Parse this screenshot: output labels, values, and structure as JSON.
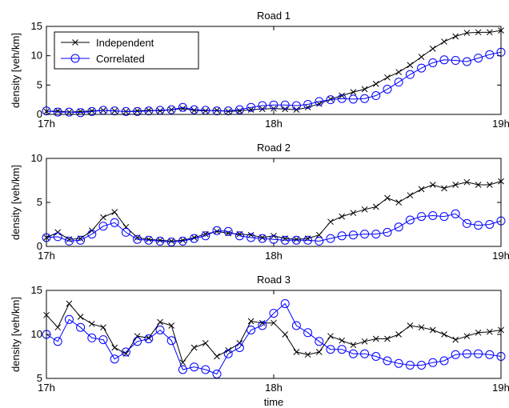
{
  "chart_data": [
    {
      "type": "line",
      "title": "Road 1",
      "ylabel": "density [veh/km]",
      "x": [
        17,
        17.05,
        17.1,
        17.15,
        17.2,
        17.25,
        17.3,
        17.35,
        17.4,
        17.45,
        17.5,
        17.55,
        17.6,
        17.65,
        17.7,
        17.75,
        17.8,
        17.85,
        17.9,
        17.95,
        18,
        18.05,
        18.1,
        18.15,
        18.2,
        18.25,
        18.3,
        18.35,
        18.4,
        18.45,
        18.5,
        18.55,
        18.6,
        18.65,
        18.7,
        18.75,
        18.8,
        18.85,
        18.9,
        18.95,
        19
      ],
      "series": [
        {
          "name": "Independent",
          "color": "#000000",
          "marker": "x",
          "values": [
            0.5,
            0.6,
            0.4,
            0.5,
            0.6,
            0.7,
            0.6,
            0.5,
            0.6,
            0.7,
            0.6,
            0.8,
            1.0,
            0.7,
            0.6,
            0.7,
            0.5,
            0.6,
            0.8,
            0.9,
            1.0,
            0.9,
            0.8,
            1.2,
            1.8,
            2.6,
            3.2,
            3.8,
            4.3,
            5.2,
            6.3,
            7.2,
            8.4,
            9.8,
            11.2,
            12.4,
            13.3,
            13.9,
            14.0,
            14.0,
            14.3
          ]
        },
        {
          "name": "Correlated",
          "color": "#0000ff",
          "marker": "o",
          "values": [
            0.6,
            0.4,
            0.4,
            0.3,
            0.5,
            0.7,
            0.6,
            0.5,
            0.5,
            0.6,
            0.7,
            0.8,
            1.2,
            0.8,
            0.7,
            0.6,
            0.6,
            0.8,
            1.2,
            1.5,
            1.6,
            1.6,
            1.5,
            1.7,
            2.2,
            2.5,
            2.7,
            2.6,
            2.7,
            3.2,
            4.3,
            5.5,
            6.8,
            7.9,
            8.8,
            9.3,
            9.2,
            9.0,
            9.6,
            10.2,
            10.6
          ]
        }
      ],
      "xlim": [
        17,
        19
      ],
      "xticks": [
        {
          "value": 17,
          "label": "17h"
        },
        {
          "value": 18,
          "label": "18h"
        },
        {
          "value": 19,
          "label": "19h"
        }
      ],
      "ylim": [
        0,
        15
      ],
      "yticks": [
        0,
        5,
        10,
        15
      ],
      "legend": "upper left"
    },
    {
      "type": "line",
      "title": "Road 2",
      "ylabel": "density [veh/km]",
      "x": [
        17,
        17.05,
        17.1,
        17.15,
        17.2,
        17.25,
        17.3,
        17.35,
        17.4,
        17.45,
        17.5,
        17.55,
        17.6,
        17.65,
        17.7,
        17.75,
        17.8,
        17.85,
        17.9,
        17.95,
        18,
        18.05,
        18.1,
        18.15,
        18.2,
        18.25,
        18.3,
        18.35,
        18.4,
        18.45,
        18.5,
        18.55,
        18.6,
        18.65,
        18.7,
        18.75,
        18.8,
        18.85,
        18.9,
        18.95,
        19
      ],
      "series": [
        {
          "color": "#000000",
          "marker": "x",
          "values": [
            1.0,
            1.6,
            0.8,
            0.9,
            1.8,
            3.3,
            3.9,
            2.2,
            1.0,
            0.8,
            0.7,
            0.6,
            0.7,
            1.0,
            1.4,
            1.7,
            1.5,
            1.4,
            1.3,
            1.0,
            1.2,
            0.9,
            0.8,
            0.9,
            1.3,
            2.8,
            3.4,
            3.8,
            4.2,
            4.5,
            5.5,
            5.0,
            5.8,
            6.5,
            7.0,
            6.6,
            7.0,
            7.3,
            7.0,
            7.0,
            7.4
          ]
        },
        {
          "color": "#0000ff",
          "marker": "o",
          "values": [
            1.0,
            1.1,
            0.6,
            0.7,
            1.4,
            2.3,
            2.7,
            1.6,
            0.8,
            0.7,
            0.6,
            0.5,
            0.6,
            0.9,
            1.2,
            1.8,
            1.7,
            1.2,
            1.0,
            0.9,
            0.8,
            0.7,
            0.7,
            0.7,
            0.6,
            0.9,
            1.2,
            1.3,
            1.4,
            1.4,
            1.6,
            2.2,
            3.0,
            3.4,
            3.5,
            3.4,
            3.7,
            2.6,
            2.4,
            2.5,
            2.9
          ]
        }
      ],
      "xlim": [
        17,
        19
      ],
      "xticks": [
        {
          "value": 17,
          "label": "17h"
        },
        {
          "value": 18,
          "label": "18h"
        },
        {
          "value": 19,
          "label": "19h"
        }
      ],
      "ylim": [
        0,
        10
      ],
      "yticks": [
        0,
        5,
        10
      ]
    },
    {
      "type": "line",
      "title": "Road 3",
      "ylabel": "density [veh/km]",
      "xlabel": "time",
      "x": [
        17,
        17.05,
        17.1,
        17.15,
        17.2,
        17.25,
        17.3,
        17.35,
        17.4,
        17.45,
        17.5,
        17.55,
        17.6,
        17.65,
        17.7,
        17.75,
        17.8,
        17.85,
        17.9,
        17.95,
        18,
        18.05,
        18.1,
        18.15,
        18.2,
        18.25,
        18.3,
        18.35,
        18.4,
        18.45,
        18.5,
        18.55,
        18.6,
        18.65,
        18.7,
        18.75,
        18.8,
        18.85,
        18.9,
        18.95,
        19
      ],
      "series": [
        {
          "color": "#000000",
          "marker": "x",
          "values": [
            12.2,
            10.8,
            13.5,
            12.0,
            11.2,
            10.8,
            8.5,
            7.8,
            9.8,
            9.6,
            11.4,
            11.0,
            6.8,
            8.5,
            9.0,
            7.5,
            8.2,
            9.0,
            11.5,
            11.3,
            11.3,
            10.0,
            8.0,
            7.7,
            8.0,
            9.8,
            9.3,
            8.8,
            9.2,
            9.5,
            9.5,
            10.0,
            11.0,
            10.8,
            10.5,
            10.0,
            9.4,
            9.8,
            10.2,
            10.3,
            10.5
          ]
        },
        {
          "color": "#0000ff",
          "marker": "o",
          "values": [
            10.0,
            9.2,
            11.7,
            10.8,
            9.6,
            9.4,
            7.2,
            8.0,
            9.2,
            9.5,
            10.5,
            9.3,
            6.0,
            6.3,
            6.0,
            5.5,
            7.8,
            8.5,
            10.5,
            11.0,
            12.4,
            13.5,
            11.0,
            10.2,
            9.2,
            8.3,
            8.3,
            7.8,
            7.8,
            7.5,
            7.0,
            6.7,
            6.5,
            6.5,
            6.8,
            7.0,
            7.7,
            7.8,
            7.8,
            7.7,
            7.5
          ]
        }
      ],
      "xlim": [
        17,
        19
      ],
      "xticks": [
        {
          "value": 17,
          "label": "17h"
        },
        {
          "value": 18,
          "label": "18h"
        },
        {
          "value": 19,
          "label": "19h"
        }
      ],
      "ylim": [
        5,
        15
      ],
      "yticks": [
        5,
        10,
        15
      ]
    }
  ]
}
